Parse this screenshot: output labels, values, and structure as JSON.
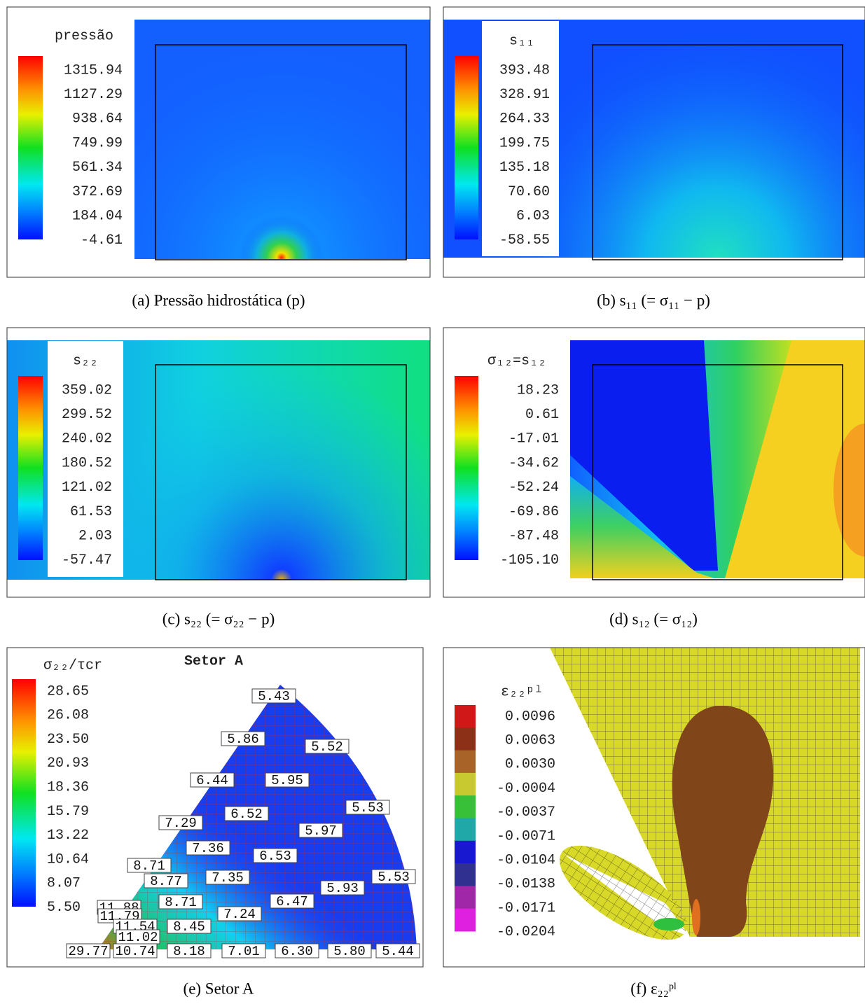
{
  "panels": [
    {
      "legend_title": "pressão",
      "legend_labels": [
        "1315.94",
        "1127.29",
        "938.64",
        "749.99",
        "561.34",
        "372.69",
        "184.04",
        "-4.61"
      ],
      "caption": "(a) Pressão hidrostática (p)"
    },
    {
      "legend_title": "s₁₁",
      "legend_labels": [
        "393.48",
        "328.91",
        "264.33",
        "199.75",
        "135.18",
        "70.60",
        "6.03",
        "-58.55"
      ],
      "caption": "(b) s₁₁ (= σ₁₁ − p)"
    },
    {
      "legend_title": "s₂₂",
      "legend_labels": [
        "359.02",
        "299.52",
        "240.02",
        "180.52",
        "121.02",
        "61.53",
        "2.03",
        "-57.47"
      ],
      "caption": "(c) s₂₂ (= σ₂₂ − p)"
    },
    {
      "legend_title": "σ₁₂=s₁₂",
      "legend_labels": [
        "18.23",
        "0.61",
        "-17.01",
        "-34.62",
        "-52.24",
        "-69.86",
        "-87.48",
        "-105.10"
      ],
      "caption": "(d) s₁₂ (= σ₁₂)"
    },
    {
      "legend_title": "σ₂₂/τcr",
      "legend_labels": [
        "28.65",
        "26.08",
        "23.50",
        "20.93",
        "18.36",
        "15.79",
        "13.22",
        "10.64",
        "8.07",
        "5.50"
      ],
      "caption": "(e) Setor A",
      "title": "Setor A",
      "value_labels": [
        "5.43",
        "5.86",
        "5.52",
        "6.44",
        "5.95",
        "5.53",
        "7.29",
        "6.52",
        "5.97",
        "7.36",
        "6.53",
        "8.71",
        "8.77",
        "7.35",
        "5.53",
        "5.93",
        "11.88",
        "8.71",
        "6.47",
        "11.79",
        "7.24",
        "11.54",
        "8.45",
        "11.02",
        "29.77",
        "10.74",
        "8.18",
        "7.01",
        "6.30",
        "5.80",
        "5.44"
      ]
    },
    {
      "legend_title": "ε₂₂ᵖˡ",
      "legend_labels": [
        "0.0096",
        "0.0063",
        "0.0030",
        "-0.0004",
        "-0.0037",
        "-0.0071",
        "-0.0104",
        "-0.0138",
        "-0.0171",
        "-0.0204"
      ],
      "caption": "(f) ε₂₂ᵖˡ"
    }
  ]
}
